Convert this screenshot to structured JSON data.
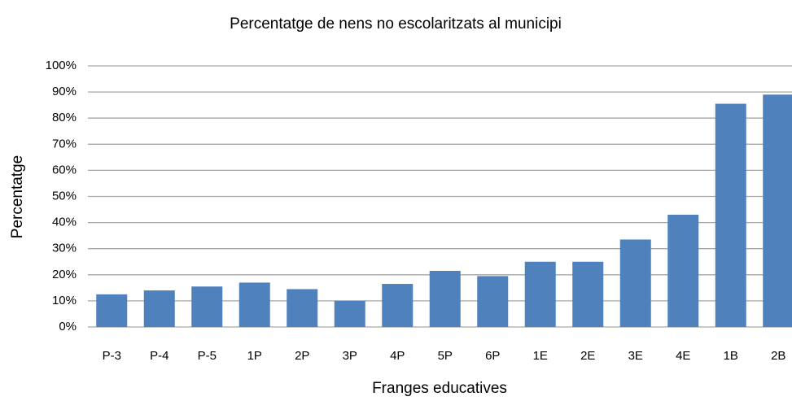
{
  "chart_data": {
    "type": "bar",
    "title": "Percentatge de nens no escolaritzats al municipi",
    "x_label": "Franges educatives",
    "y_label": "Percentatge",
    "categories": [
      "P-3",
      "P-4",
      "P-5",
      "1P",
      "2P",
      "3P",
      "4P",
      "5P",
      "6P",
      "1E",
      "2E",
      "3E",
      "4E",
      "1B",
      "2B"
    ],
    "values": [
      12.5,
      14,
      15.5,
      17,
      14.5,
      10,
      16.5,
      21.5,
      19.5,
      25,
      25,
      33.5,
      43,
      85.5,
      89
    ],
    "color": "#4f81bd",
    "ylim": [
      0,
      100
    ],
    "yticks": [
      {
        "value": 0,
        "label": "0%"
      },
      {
        "value": 10,
        "label": "10%"
      },
      {
        "value": 20,
        "label": "20%"
      },
      {
        "value": 30,
        "label": "30%"
      },
      {
        "value": 40,
        "label": "40%"
      },
      {
        "value": 50,
        "label": "50%"
      },
      {
        "value": 60,
        "label": "60%"
      },
      {
        "value": 70,
        "label": "70%"
      },
      {
        "value": 80,
        "label": "80%"
      },
      {
        "value": 90,
        "label": "90%"
      },
      {
        "value": 100,
        "label": "100%"
      }
    ],
    "grid": true
  }
}
